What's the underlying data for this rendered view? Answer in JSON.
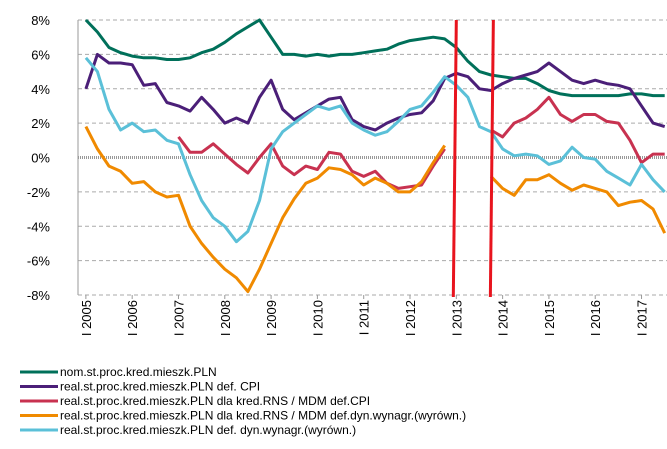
{
  "chart_data": {
    "type": "line",
    "x": [
      2005,
      2005.25,
      2005.5,
      2005.75,
      2006,
      2006.25,
      2006.5,
      2006.75,
      2007,
      2007.25,
      2007.5,
      2007.75,
      2008,
      2008.25,
      2008.5,
      2008.75,
      2009,
      2009.25,
      2009.5,
      2009.75,
      2010,
      2010.25,
      2010.5,
      2010.75,
      2011,
      2011.25,
      2011.5,
      2011.75,
      2012,
      2012.25,
      2012.5,
      2012.75,
      2013,
      2013.25,
      2013.5,
      2013.75,
      2014,
      2014.25,
      2014.5,
      2014.75,
      2015,
      2015.25,
      2015.5,
      2015.75,
      2016,
      2016.25,
      2016.5,
      2016.75,
      2017,
      2017.25,
      2017.5
    ],
    "xlim": [
      2004.83,
      2017.55
    ],
    "xticks": [
      {
        "value": 2005,
        "label": "I 2005"
      },
      {
        "value": 2006,
        "label": "I 2006"
      },
      {
        "value": 2007,
        "label": "I 2007"
      },
      {
        "value": 2008,
        "label": "I 2008"
      },
      {
        "value": 2009,
        "label": "I 2009"
      },
      {
        "value": 2010,
        "label": "I 2010"
      },
      {
        "value": 2011,
        "label": "I 2011"
      },
      {
        "value": 2012,
        "label": "I 2012"
      },
      {
        "value": 2013,
        "label": "I 2013"
      },
      {
        "value": 2014,
        "label": "I 2014"
      },
      {
        "value": 2015,
        "label": "I 2015"
      },
      {
        "value": 2016,
        "label": "I 2016"
      },
      {
        "value": 2017,
        "label": "I 2017"
      }
    ],
    "ylim": [
      -8,
      8
    ],
    "yticks": [
      {
        "value": -8,
        "label": "-8%"
      },
      {
        "value": -6,
        "label": "-6%"
      },
      {
        "value": -4,
        "label": "-4%"
      },
      {
        "value": -2,
        "label": "-2%"
      },
      {
        "value": 0,
        "label": "0%"
      },
      {
        "value": 2,
        "label": "2%"
      },
      {
        "value": 4,
        "label": "4%"
      },
      {
        "value": 6,
        "label": "6%"
      },
      {
        "value": 8,
        "label": "8%"
      }
    ],
    "grid": true,
    "vlines": [
      2013.0,
      2013.8
    ],
    "vline_color": "#e8141e",
    "series": [
      {
        "name": "nom.st.proc.kred.mieszk.PLN",
        "color": "#00705a",
        "values": [
          8.0,
          7.3,
          6.4,
          6.1,
          5.9,
          5.8,
          5.8,
          5.7,
          5.7,
          5.8,
          6.1,
          6.3,
          6.7,
          7.2,
          7.6,
          8.0,
          7.0,
          6.0,
          6.0,
          5.9,
          6.0,
          5.9,
          6.0,
          6.0,
          6.1,
          6.2,
          6.3,
          6.6,
          6.8,
          6.9,
          7.0,
          6.9,
          6.4,
          5.6,
          5.0,
          4.8,
          4.7,
          4.6,
          4.6,
          4.3,
          3.9,
          3.7,
          3.6,
          3.6,
          3.6,
          3.6,
          3.6,
          3.7,
          3.7,
          3.6,
          3.6
        ]
      },
      {
        "name": "real.st.proc.kred.mieszk.PLN def. CPI",
        "color": "#4b1f78",
        "values": [
          4.0,
          6.0,
          5.5,
          5.5,
          5.4,
          4.2,
          4.3,
          3.2,
          3.0,
          2.7,
          3.5,
          2.8,
          2.0,
          2.3,
          2.0,
          3.5,
          4.5,
          2.8,
          2.2,
          2.6,
          3.0,
          3.4,
          3.5,
          2.2,
          1.8,
          1.6,
          2.0,
          2.3,
          2.5,
          2.6,
          3.3,
          4.6,
          4.9,
          4.7,
          4.0,
          3.9,
          4.3,
          4.6,
          4.8,
          5.0,
          5.5,
          5.0,
          4.5,
          4.3,
          4.5,
          4.3,
          4.2,
          4.0,
          3.0,
          2.0,
          1.8
        ]
      },
      {
        "name": "real.st.proc.kred.mieszk.PLN dla kred.RNS / MDM def.CPI",
        "color": "#c83250",
        "values": [
          null,
          null,
          null,
          null,
          null,
          null,
          null,
          null,
          1.2,
          0.3,
          0.3,
          0.8,
          0.2,
          -0.4,
          -0.9,
          0.0,
          0.8,
          -0.5,
          -1.0,
          -0.5,
          -0.7,
          0.3,
          0.2,
          -0.8,
          -1.1,
          -0.8,
          -1.5,
          -1.8,
          -1.7,
          -1.6,
          -0.5,
          0.5,
          null,
          null,
          null,
          1.6,
          1.2,
          2.0,
          2.3,
          2.8,
          3.5,
          2.5,
          2.1,
          2.5,
          2.5,
          2.1,
          2.0,
          1.0,
          -0.3,
          0.2,
          0.2
        ]
      },
      {
        "name": "real.st.proc.kred.mieszk.PLN dla kred.RNS / MDM def.dyn.wynagr.(wyrówn.)",
        "color": "#f08a00",
        "values": [
          1.8,
          0.5,
          -0.5,
          -0.8,
          -1.5,
          -1.4,
          -2.0,
          -2.3,
          -2.2,
          -4.0,
          -5.0,
          -5.8,
          -6.5,
          -7.0,
          -7.8,
          -6.5,
          -5.0,
          -3.5,
          -2.4,
          -1.5,
          -1.2,
          -0.6,
          -0.7,
          -1.0,
          -1.6,
          -1.2,
          -1.5,
          -2.0,
          -2.0,
          -1.4,
          -0.3,
          0.7,
          null,
          null,
          null,
          -1.1,
          -1.8,
          -2.2,
          -1.3,
          -1.3,
          -1.0,
          -1.5,
          -1.9,
          -1.6,
          -1.8,
          -2.0,
          -2.8,
          -2.6,
          -2.5,
          -3.0,
          -4.4
        ]
      },
      {
        "name": "real.st.proc.kred.mieszk.PLN def. dyn.wynagr.(wyrówn.)",
        "color": "#5bc0d8",
        "values": [
          5.8,
          5.0,
          2.8,
          1.6,
          2.0,
          1.5,
          1.6,
          1.0,
          0.8,
          -1.0,
          -2.5,
          -3.5,
          -4.0,
          -4.9,
          -4.3,
          -2.5,
          0.5,
          1.5,
          2.0,
          2.5,
          3.0,
          2.8,
          3.0,
          2.0,
          1.6,
          1.3,
          1.5,
          2.1,
          2.8,
          3.0,
          3.8,
          4.7,
          4.2,
          3.5,
          1.8,
          1.5,
          0.5,
          0.1,
          0.2,
          0.1,
          -0.4,
          -0.2,
          0.6,
          0.0,
          -0.1,
          -0.8,
          -1.2,
          -1.6,
          -0.4,
          -1.3,
          -2.0
        ]
      }
    ]
  }
}
